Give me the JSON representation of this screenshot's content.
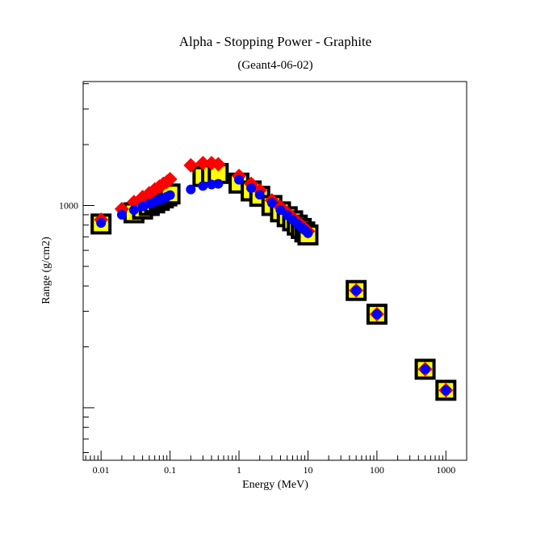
{
  "chart_data": {
    "type": "scatter",
    "title": "Alpha - Stopping Power - Graphite",
    "subtitle": "(Geant4-06-02)",
    "xlabel": "Energy (MeV)",
    "ylabel": "Range (g/cm2)",
    "x_scale": "log",
    "y_scale": "log",
    "xlim": [
      0.0055,
      2000
    ],
    "ylim": [
      55,
      4100
    ],
    "grid": false,
    "x_tick_labels": [
      "0.01",
      "0.1",
      "1",
      "10",
      "100",
      "1000"
    ],
    "y_tick_labels": [
      "1000"
    ],
    "series": [
      {
        "marker": "square",
        "colors": {
          "outline": "#000000",
          "fill": "#ffff00"
        },
        "x": [
          0.01,
          0.03,
          0.04,
          0.05,
          0.06,
          0.07,
          0.08,
          0.09,
          0.1,
          0.3,
          0.4,
          0.5,
          1,
          1.5,
          2,
          3,
          4,
          5,
          6,
          7,
          8,
          9,
          10,
          50,
          100,
          500,
          1000
        ],
        "y": [
          810,
          920,
          960,
          1000,
          1030,
          1060,
          1090,
          1115,
          1140,
          1390,
          1420,
          1440,
          1290,
          1180,
          1110,
          1000,
          930,
          880,
          840,
          800,
          770,
          740,
          715,
          380,
          290,
          155,
          122
        ]
      },
      {
        "marker": "diamond",
        "colors": {
          "fill": "#ff0000"
        },
        "x": [
          0.01,
          0.02,
          0.03,
          0.04,
          0.05,
          0.06,
          0.07,
          0.08,
          0.09,
          0.1,
          0.2,
          0.3,
          0.4,
          0.5,
          1,
          1.5,
          2,
          3,
          4,
          5,
          6,
          7,
          8,
          9,
          10,
          50,
          100,
          500,
          1000
        ],
        "y": [
          850,
          960,
          1040,
          1100,
          1150,
          1200,
          1240,
          1280,
          1310,
          1350,
          1580,
          1620,
          1620,
          1600,
          1400,
          1280,
          1190,
          1060,
          980,
          920,
          870,
          830,
          800,
          770,
          745,
          380,
          290,
          155,
          122
        ]
      },
      {
        "marker": "circle",
        "colors": {
          "fill": "#0000ff"
        },
        "x": [
          0.01,
          0.02,
          0.03,
          0.04,
          0.05,
          0.06,
          0.07,
          0.08,
          0.09,
          0.1,
          0.2,
          0.3,
          0.4,
          0.5,
          1,
          1.5,
          2,
          3,
          4,
          5,
          6,
          7,
          8,
          9,
          10,
          50,
          100,
          500,
          1000
        ],
        "y": [
          820,
          900,
          950,
          990,
          1020,
          1045,
          1065,
          1085,
          1105,
          1125,
          1200,
          1250,
          1270,
          1280,
          1340,
          1220,
          1130,
          1030,
          950,
          895,
          850,
          810,
          780,
          755,
          730,
          380,
          290,
          155,
          122
        ]
      }
    ]
  }
}
